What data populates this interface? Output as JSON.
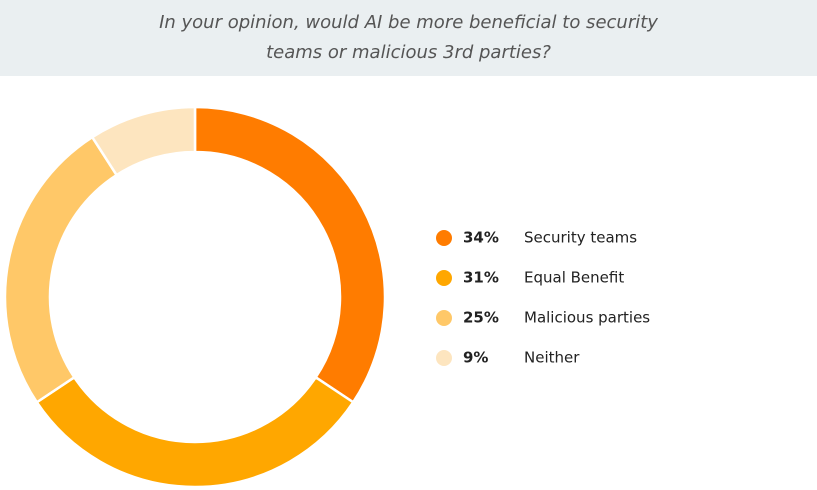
{
  "chart_data": {
    "type": "donut",
    "title": "In your opinion, would AI be more beneficial to security teams or malicious 3rd parties?",
    "categories": [
      "Security teams",
      "Equal Benefit",
      "Malicious parties",
      "Neither"
    ],
    "values": [
      34,
      31,
      25,
      9
    ],
    "value_labels": [
      "34%",
      "31%",
      "25%",
      "9%"
    ],
    "colors": [
      "#ff7c00",
      "#ffa700",
      "#ffc868",
      "#fde5bf"
    ],
    "legend": "right"
  }
}
